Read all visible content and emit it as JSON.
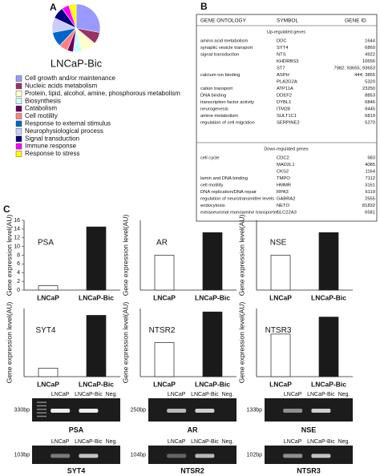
{
  "panel_labels": [
    "A",
    "B",
    "C"
  ],
  "chart_data": [
    {
      "type": "pie",
      "title": "LNCaP-Bic",
      "categories": [
        "Cell growth and/or maintenance",
        "Nucleic acids metabolism",
        "Protein, lipid, alcohol, amine, phosphorous metabolism",
        "Biosynthesis",
        "Catabolism",
        "Cell motility",
        "Response to external stimulus",
        "Neurophysiological process",
        "Signal transduction",
        "Immune response",
        "Response to stress"
      ],
      "values": [
        28,
        8,
        10,
        6,
        4,
        6,
        10,
        10,
        8,
        5,
        5
      ],
      "colors": [
        "#9999ff",
        "#993366",
        "#ffffcc",
        "#ccffff",
        "#660066",
        "#ff8080",
        "#0066cc",
        "#ccccff",
        "#000080",
        "#ff00ff",
        "#ffff00"
      ]
    },
    {
      "type": "bar",
      "label": "PSA",
      "ylabel": "Gene expression level(AU)",
      "categories": [
        "LNCaP",
        "LNCaP-Bic"
      ],
      "values": [
        1,
        14.5
      ],
      "colors": [
        "#ffffff",
        "#1a1a1a"
      ],
      "ylim": [
        0,
        16
      ],
      "yticks": [
        0,
        2,
        4,
        6,
        8,
        10,
        12,
        14,
        16
      ]
    },
    {
      "type": "bar",
      "label": "AR",
      "ylabel": "Gene expression level(AU)",
      "categories": [
        "LNCaP",
        "LNCaP-Bic"
      ],
      "values": [
        1,
        1.65
      ],
      "colors": [
        "#ffffff",
        "#1a1a1a"
      ],
      "ylim": [
        0,
        2
      ]
    },
    {
      "type": "bar",
      "label": "NSE",
      "ylabel": "Gene expression level(AU)",
      "categories": [
        "LNCaP",
        "LNCaP-Bic"
      ],
      "values": [
        1,
        1.65
      ],
      "colors": [
        "#ffffff",
        "#1a1a1a"
      ],
      "ylim": [
        0,
        2
      ]
    },
    {
      "type": "bar",
      "label": "SYT4",
      "ylabel": "Gene expression level(AU)",
      "categories": [
        "LNCaP",
        "LNCaP-Bic"
      ],
      "values": [
        1,
        7.2
      ],
      "colors": [
        "#ffffff",
        "#1a1a1a"
      ],
      "ylim": [
        0,
        8
      ]
    },
    {
      "type": "bar",
      "label": "NTSR2",
      "ylabel": "Gene expression level(AU)",
      "categories": [
        "LNCaP",
        "LNCaP-Bic"
      ],
      "values": [
        1,
        1.9
      ],
      "colors": [
        "#ffffff",
        "#1a1a1a"
      ],
      "ylim": [
        0,
        2
      ]
    },
    {
      "type": "bar",
      "label": "NTSR3",
      "ylabel": "Gene expression level(AU)",
      "categories": [
        "LNCaP",
        "LNCaP-Bic"
      ],
      "values": [
        1,
        1.4
      ],
      "colors": [
        "#ffffff",
        "#1a1a1a"
      ],
      "ylim": [
        0,
        1.6
      ]
    }
  ],
  "table": {
    "headers": [
      "GENE ONTOLOGY",
      "SYMBOL",
      "GENE ID"
    ],
    "sections": [
      {
        "title": "Up-regulated genes",
        "rows": [
          [
            "amino acid metabolism",
            "DDC",
            "1644"
          ],
          [
            "synaptic vesicle transport",
            "SYT4",
            "6860"
          ],
          [
            "signal transduction",
            "NTS",
            "4922"
          ],
          [
            null,
            "KHDRBS3",
            "10656"
          ],
          [
            null,
            "ST7",
            "7982; 93655; 93653"
          ],
          [
            "calcium ion binding",
            "ASPH",
            "444; 3855"
          ],
          [
            null,
            "PLA2G2A",
            "5320"
          ],
          [
            "cation transport",
            "ATP11A",
            "23250"
          ],
          [
            "DNA binding",
            "DDEF2",
            "8853"
          ],
          [
            "transcription factor activity",
            "DYBL1",
            "6846"
          ],
          [
            "neurogenesis",
            "ITM2B",
            "9445"
          ],
          [
            "amine metabolism",
            "SULT1C1",
            "6819"
          ],
          [
            "regulation of cell migration",
            "SERPINE2",
            "5270"
          ]
        ]
      },
      {
        "title": "Down-regulated genes",
        "rows": [
          [
            "cell cycle",
            "CDC2",
            "983"
          ],
          [
            null,
            "MAD2L1",
            "4085"
          ],
          [
            null,
            "CKS2",
            "1164"
          ],
          [
            "lamin and DNA binding",
            "TMPO",
            "7112"
          ],
          [
            "cell motility",
            "HMMR",
            "3161"
          ],
          [
            "DNA replication/DNA repair",
            "RPA3",
            "6119"
          ],
          [
            "regulation of neurotransmitter levels",
            "GABRA2",
            "2555"
          ],
          [
            "endocytosis",
            "NETO",
            "81832"
          ],
          [
            "extraneuronal monoamine transporter",
            "SLC22A3",
            "6581"
          ]
        ]
      }
    ]
  },
  "gels": [
    {
      "lanes": [
        "LNCaP",
        "LNCaP-Bic",
        "Neg."
      ],
      "size": "330bp",
      "gene": "PSA"
    },
    {
      "lanes": [
        "LNCaP",
        "LNCaP-Bic",
        "Neg."
      ],
      "size": "250bp",
      "gene": "AR"
    },
    {
      "lanes": [
        "LNCaP",
        "LNCaP-Bic",
        "Neg."
      ],
      "size": "133bp",
      "gene": "NSE"
    },
    {
      "lanes": [
        "LNCaP",
        "LNCaP-Bic",
        "Neg."
      ],
      "size": "103bp",
      "gene": "SYT4"
    },
    {
      "lanes": [
        "LNCaP",
        "LNCaP-Bic",
        "Neg."
      ],
      "size": "104bp",
      "gene": "NTSR2"
    },
    {
      "lanes": [
        "LNCaP",
        "LNCaP-Bic",
        "Neg."
      ],
      "size": "102bp",
      "gene": "NTSR3"
    }
  ]
}
